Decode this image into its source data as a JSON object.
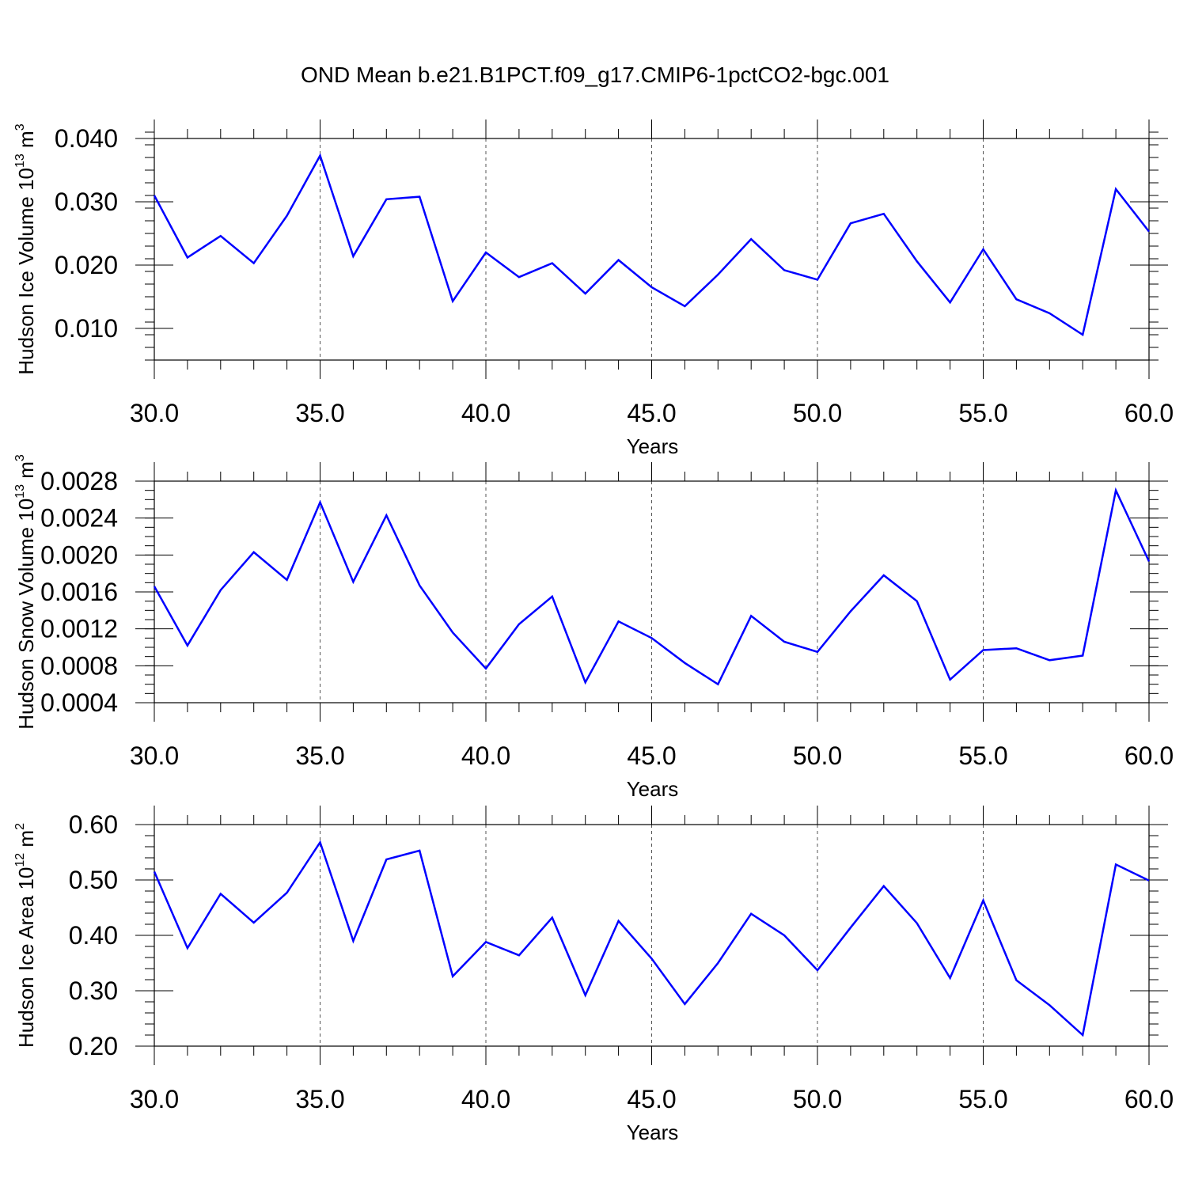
{
  "title": "OND Mean b.e21.B1PCT.f09_g17.CMIP6-1pctCO2-bgc.001",
  "chart_data": [
    {
      "type": "line",
      "ylabel": {
        "prefix": "Hudson Ice Volume 10",
        "exp": "13",
        "mid": " m",
        "unit_exp": "3"
      },
      "xlabel": "Years",
      "xlim": [
        30,
        60
      ],
      "ylim": [
        0.005,
        0.04
      ],
      "xticks": [
        30,
        35,
        40,
        45,
        50,
        55,
        60
      ],
      "xtick_labels": [
        "30.0",
        "35.0",
        "40.0",
        "45.0",
        "50.0",
        "55.0",
        "60.0"
      ],
      "yticks": [
        0.01,
        0.02,
        0.03,
        0.04
      ],
      "ytick_labels": [
        "0.010",
        "0.020",
        "0.030",
        "0.040"
      ],
      "yminor_step": 0.002,
      "grid": "dashed vertical at major x ticks",
      "line_color": "#0000ff",
      "x": [
        30,
        31,
        32,
        33,
        34,
        35,
        36,
        37,
        38,
        39,
        40,
        41,
        42,
        43,
        44,
        45,
        46,
        47,
        48,
        49,
        50,
        51,
        52,
        53,
        54,
        55,
        56,
        57,
        58,
        59,
        60
      ],
      "values": [
        0.031,
        0.0212,
        0.0246,
        0.0203,
        0.0278,
        0.0373,
        0.0214,
        0.0304,
        0.0308,
        0.0143,
        0.022,
        0.0181,
        0.0203,
        0.0155,
        0.0208,
        0.0165,
        0.0135,
        0.0185,
        0.0241,
        0.0192,
        0.0177,
        0.0266,
        0.0281,
        0.0206,
        0.0141,
        0.0225,
        0.0146,
        0.0124,
        0.009,
        0.032,
        0.0253
      ]
    },
    {
      "type": "line",
      "ylabel": {
        "prefix": "Hudson Snow Volume 10",
        "exp": "13",
        "mid": " m",
        "unit_exp": "3"
      },
      "xlabel": "Years",
      "xlim": [
        30,
        60
      ],
      "ylim": [
        0.0004,
        0.0028
      ],
      "xticks": [
        30,
        35,
        40,
        45,
        50,
        55,
        60
      ],
      "xtick_labels": [
        "30.0",
        "35.0",
        "40.0",
        "45.0",
        "50.0",
        "55.0",
        "60.0"
      ],
      "yticks": [
        0.0004,
        0.0008,
        0.0012,
        0.0016,
        0.002,
        0.0024,
        0.0028
      ],
      "ytick_labels": [
        "0.0004",
        "0.0008",
        "0.0012",
        "0.0016",
        "0.0020",
        "0.0024",
        "0.0028"
      ],
      "yminor_step": 0.0001,
      "grid": "dashed vertical at major x ticks",
      "line_color": "#0000ff",
      "x": [
        30,
        31,
        32,
        33,
        34,
        35,
        36,
        37,
        38,
        39,
        40,
        41,
        42,
        43,
        44,
        45,
        46,
        47,
        48,
        49,
        50,
        51,
        52,
        53,
        54,
        55,
        56,
        57,
        58,
        59,
        60
      ],
      "values": [
        0.00166,
        0.00102,
        0.00162,
        0.00203,
        0.00173,
        0.00257,
        0.00171,
        0.00243,
        0.00167,
        0.00116,
        0.00077,
        0.00125,
        0.00155,
        0.00062,
        0.00128,
        0.0011,
        0.00083,
        0.0006,
        0.00134,
        0.00106,
        0.00095,
        0.00139,
        0.00178,
        0.0015,
        0.00065,
        0.00097,
        0.00099,
        0.00086,
        0.00091,
        0.0027,
        0.00193
      ]
    },
    {
      "type": "line",
      "ylabel": {
        "prefix": "Hudson Ice Area 10",
        "exp": "12",
        "mid": " m",
        "unit_exp": "2"
      },
      "xlabel": "Years",
      "xlim": [
        30,
        60
      ],
      "ylim": [
        0.2,
        0.6
      ],
      "xticks": [
        30,
        35,
        40,
        45,
        50,
        55,
        60
      ],
      "xtick_labels": [
        "30.0",
        "35.0",
        "40.0",
        "45.0",
        "50.0",
        "55.0",
        "60.0"
      ],
      "yticks": [
        0.2,
        0.3,
        0.4,
        0.5,
        0.6
      ],
      "ytick_labels": [
        "0.20",
        "0.30",
        "0.40",
        "0.50",
        "0.60"
      ],
      "yminor_step": 0.02,
      "grid": "dashed vertical at major x ticks",
      "line_color": "#0000ff",
      "x": [
        30,
        31,
        32,
        33,
        34,
        35,
        36,
        37,
        38,
        39,
        40,
        41,
        42,
        43,
        44,
        45,
        46,
        47,
        48,
        49,
        50,
        51,
        52,
        53,
        54,
        55,
        56,
        57,
        58,
        59,
        60
      ],
      "values": [
        0.515,
        0.377,
        0.475,
        0.423,
        0.477,
        0.568,
        0.39,
        0.537,
        0.553,
        0.326,
        0.388,
        0.364,
        0.432,
        0.292,
        0.426,
        0.358,
        0.276,
        0.35,
        0.439,
        0.4,
        0.337,
        0.414,
        0.489,
        0.422,
        0.323,
        0.463,
        0.319,
        0.274,
        0.22,
        0.528,
        0.499
      ]
    }
  ]
}
